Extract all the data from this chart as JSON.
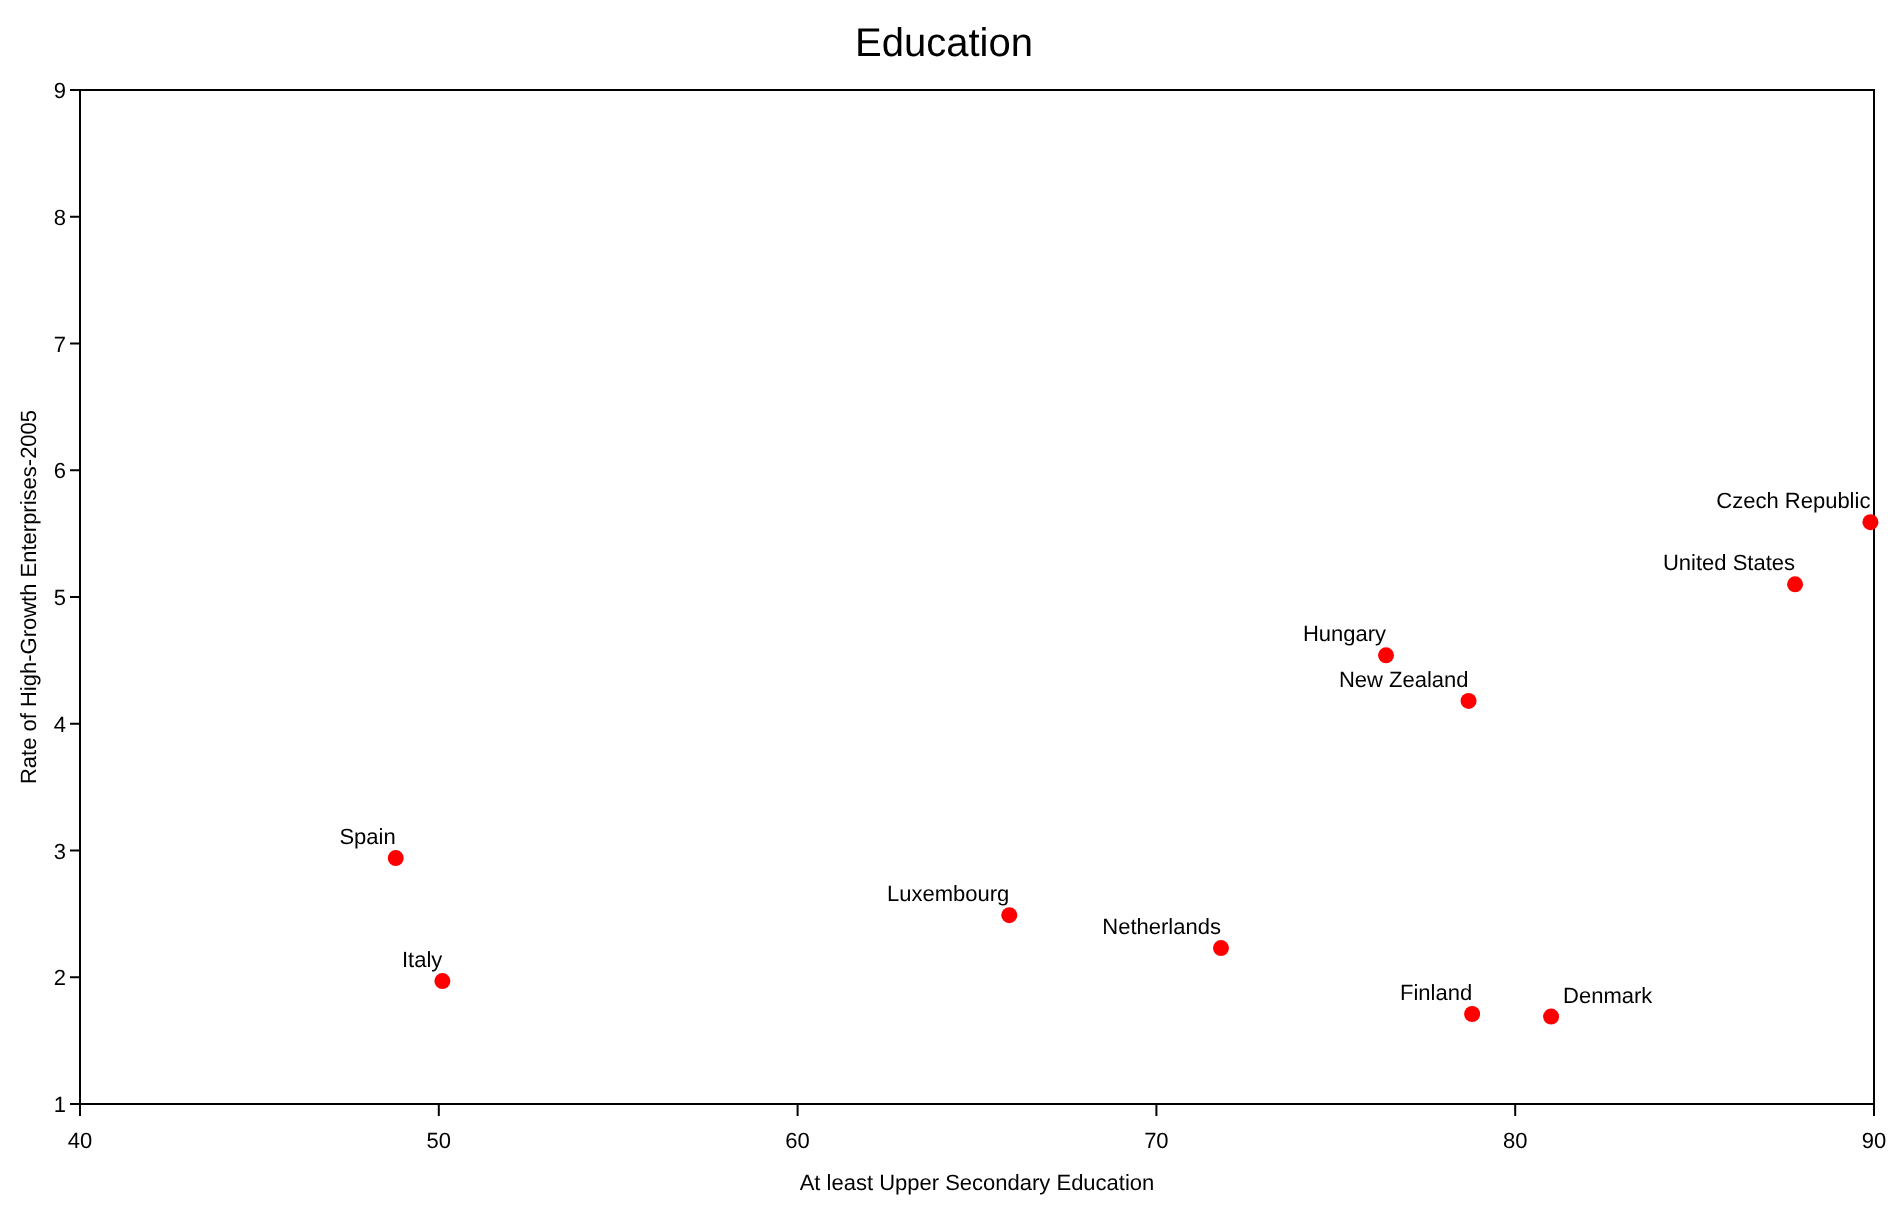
{
  "chart_data": {
    "type": "scatter",
    "title": "Education",
    "xlabel": "At least Upper Secondary Education",
    "ylabel": "Rate of High-Growth Enterprises-2005",
    "xlim": [
      40,
      90
    ],
    "xticks": [
      40,
      50,
      60,
      70,
      80,
      90
    ],
    "ylim": [
      1,
      9
    ],
    "yticks": [
      1,
      2,
      3,
      4,
      5,
      6,
      7,
      8,
      9
    ],
    "marker": "circle",
    "grid": false,
    "series": [
      {
        "name": "Spain",
        "color": "#ff0000",
        "x": [
          48.8
        ],
        "values": [
          2.94
        ]
      },
      {
        "name": "Italy",
        "color": "#ff0000",
        "x": [
          50.1
        ],
        "values": [
          1.97
        ]
      },
      {
        "name": "Luxembourg",
        "color": "#ff0000",
        "x": [
          65.9
        ],
        "values": [
          2.49
        ]
      },
      {
        "name": "Netherlands",
        "color": "#ff0000",
        "x": [
          71.8
        ],
        "values": [
          2.23
        ]
      },
      {
        "name": "Hungary",
        "color": "#ff0000",
        "x": [
          76.4
        ],
        "values": [
          4.54
        ]
      },
      {
        "name": "New Zealand",
        "color": "#ff0000",
        "x": [
          78.7
        ],
        "values": [
          4.18
        ]
      },
      {
        "name": "Finland",
        "color": "#ff0000",
        "x": [
          78.8
        ],
        "values": [
          1.71
        ]
      },
      {
        "name": "Denmark",
        "color": "#ff0000",
        "x": [
          81.0
        ],
        "values": [
          1.69
        ]
      },
      {
        "name": "United States",
        "color": "#ff0000",
        "x": [
          87.8
        ],
        "values": [
          5.1
        ]
      },
      {
        "name": "Czech Republic",
        "color": "#ff0000",
        "x": [
          89.9
        ],
        "values": [
          5.59
        ]
      }
    ]
  }
}
